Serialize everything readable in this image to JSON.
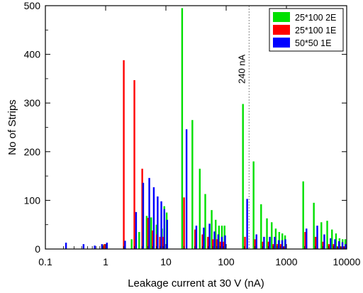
{
  "chart_data": {
    "type": "bar",
    "xscale": "log",
    "xlim": [
      0.1,
      10000
    ],
    "ylim": [
      0,
      500
    ],
    "xlabel": "Leakage current at 30 V (nA)",
    "ylabel": "No of Strips",
    "xticks": [
      {
        "value": 0.1,
        "label": "0.1"
      },
      {
        "value": 1,
        "label": "1"
      },
      {
        "value": 10,
        "label": "10"
      },
      {
        "value": 100,
        "label": "100"
      },
      {
        "value": 1000,
        "label": "1000"
      },
      {
        "value": 10000,
        "label": "10000"
      }
    ],
    "yticks": [
      {
        "value": 0,
        "label": "0"
      },
      {
        "value": 100,
        "label": "100"
      },
      {
        "value": 200,
        "label": "200"
      },
      {
        "value": 300,
        "label": "300"
      },
      {
        "value": 400,
        "label": "400"
      },
      {
        "value": 500,
        "label": "500"
      }
    ],
    "legend_position": "top-right",
    "annotation": {
      "x": 240,
      "label": "240 nA"
    },
    "series": [
      {
        "name": "25*100 2E",
        "color": "#00e000",
        "points": [
          [
            0.9,
            8
          ],
          [
            2.7,
            20
          ],
          [
            3.6,
            35
          ],
          [
            4.8,
            68
          ],
          [
            5.7,
            65
          ],
          [
            7.0,
            50
          ],
          [
            8.6,
            42
          ],
          [
            9.4,
            88
          ],
          [
            10.3,
            75
          ],
          [
            18.6,
            495
          ],
          [
            27.5,
            265
          ],
          [
            36.5,
            165
          ],
          [
            45,
            113
          ],
          [
            57.5,
            80
          ],
          [
            67,
            60
          ],
          [
            76,
            48
          ],
          [
            85,
            48
          ],
          [
            94,
            48
          ],
          [
            190,
            298
          ],
          [
            285,
            180
          ],
          [
            380,
            92
          ],
          [
            475,
            63
          ],
          [
            570,
            55
          ],
          [
            665,
            42
          ],
          [
            760,
            35
          ],
          [
            855,
            32
          ],
          [
            950,
            28
          ],
          [
            1900,
            139
          ],
          [
            2850,
            95
          ],
          [
            3800,
            55
          ],
          [
            4750,
            58
          ],
          [
            5700,
            40
          ],
          [
            6650,
            32
          ],
          [
            7600,
            22
          ],
          [
            8550,
            20
          ],
          [
            9500,
            20
          ]
        ]
      },
      {
        "name": "25*100 1E",
        "color": "#ff0000",
        "points": [
          [
            0.95,
            10
          ],
          [
            2.0,
            388
          ],
          [
            3.0,
            347
          ],
          [
            4.05,
            165
          ],
          [
            5.05,
            64
          ],
          [
            6.0,
            38
          ],
          [
            7.05,
            30
          ],
          [
            8.0,
            25
          ],
          [
            9.0,
            25
          ],
          [
            20.0,
            106
          ],
          [
            30.5,
            40
          ],
          [
            40.5,
            30
          ],
          [
            50,
            25
          ],
          [
            60,
            20
          ],
          [
            70,
            20
          ],
          [
            80,
            15
          ],
          [
            90,
            15
          ],
          [
            205,
            25
          ],
          [
            300,
            20
          ],
          [
            405,
            15
          ],
          [
            505,
            15
          ],
          [
            605,
            10
          ],
          [
            705,
            10
          ],
          [
            805,
            10
          ],
          [
            905,
            5
          ],
          [
            2050,
            35
          ],
          [
            3050,
            25
          ],
          [
            4050,
            15
          ],
          [
            5050,
            10
          ],
          [
            6050,
            10
          ],
          [
            7050,
            5
          ],
          [
            8050,
            5
          ],
          [
            9050,
            5
          ]
        ]
      },
      {
        "name": "50*50 1E",
        "color": "#0000ff",
        "points": [
          [
            0.22,
            13
          ],
          [
            0.43,
            10
          ],
          [
            0.66,
            7
          ],
          [
            0.87,
            10
          ],
          [
            1.05,
            13
          ],
          [
            2.1,
            17
          ],
          [
            3.2,
            76
          ],
          [
            4.2,
            136
          ],
          [
            5.3,
            146
          ],
          [
            6.3,
            127
          ],
          [
            7.3,
            108
          ],
          [
            8.4,
            98
          ],
          [
            9.4,
            82
          ],
          [
            10.5,
            60
          ],
          [
            22,
            246
          ],
          [
            32,
            48
          ],
          [
            42.5,
            44
          ],
          [
            53,
            52
          ],
          [
            64,
            36
          ],
          [
            74,
            30
          ],
          [
            85,
            25
          ],
          [
            96,
            28
          ],
          [
            223,
            103
          ],
          [
            318,
            30
          ],
          [
            425,
            25
          ],
          [
            530,
            25
          ],
          [
            640,
            25
          ],
          [
            745,
            18
          ],
          [
            850,
            18
          ],
          [
            960,
            20
          ],
          [
            2150,
            42
          ],
          [
            3250,
            48
          ],
          [
            4250,
            30
          ],
          [
            5400,
            22
          ],
          [
            6400,
            20
          ],
          [
            7450,
            16
          ],
          [
            8500,
            14
          ],
          [
            9600,
            10
          ]
        ]
      }
    ]
  }
}
